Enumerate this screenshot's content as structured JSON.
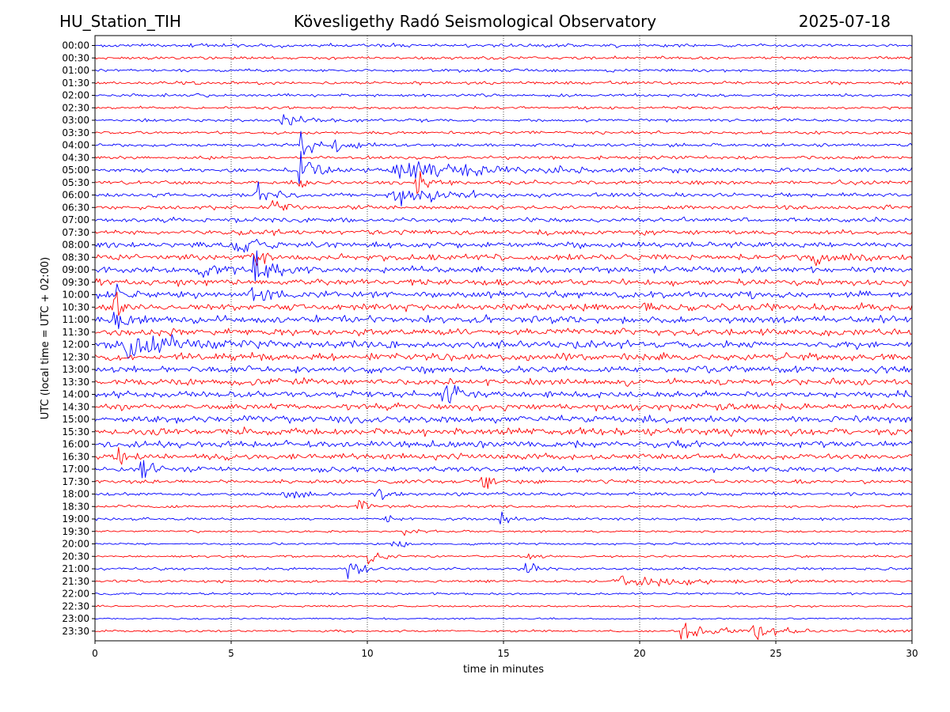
{
  "header": {
    "station": "HU_Station_TIH",
    "observatory": "Kövesligethy Radó Seismological Observatory",
    "date": "2025-07-18"
  },
  "chart_data": {
    "type": "line",
    "chart_kind": "helicorder",
    "xlabel": "time in minutes",
    "ylabel": "UTC (local time = UTC + 02:00)",
    "xlim": [
      0,
      30
    ],
    "x_ticks": [
      0,
      5,
      10,
      15,
      20,
      25,
      30
    ],
    "grid": "vertical dotted lines at x ticks",
    "colors": {
      "even_rows": "#0000ff",
      "odd_rows": "#ff0000"
    },
    "rows": [
      {
        "label": "00:00",
        "noise": 0.45,
        "events": []
      },
      {
        "label": "00:30",
        "noise": 0.4,
        "events": []
      },
      {
        "label": "01:00",
        "noise": 0.4,
        "events": []
      },
      {
        "label": "01:30",
        "noise": 0.42,
        "events": []
      },
      {
        "label": "02:00",
        "noise": 0.4,
        "events": []
      },
      {
        "label": "02:30",
        "noise": 0.35,
        "events": []
      },
      {
        "label": "03:00",
        "noise": 0.4,
        "events": [
          {
            "t": 6.9,
            "amp": 1.2,
            "dur": 0.4
          }
        ]
      },
      {
        "label": "03:30",
        "noise": 0.4,
        "events": []
      },
      {
        "label": "04:00",
        "noise": 0.45,
        "events": [
          {
            "t": 7.5,
            "amp": 3.2,
            "dur": 0.3
          },
          {
            "t": 8.8,
            "amp": 0.9,
            "dur": 0.6
          }
        ]
      },
      {
        "label": "04:30",
        "noise": 0.45,
        "events": []
      },
      {
        "label": "05:00",
        "noise": 0.55,
        "events": [
          {
            "t": 7.5,
            "amp": 3.5,
            "dur": 0.4
          },
          {
            "t": 11.0,
            "amp": 1.3,
            "dur": 3.0
          }
        ]
      },
      {
        "label": "05:30",
        "noise": 0.55,
        "events": [
          {
            "t": 7.5,
            "amp": 1.8,
            "dur": 0.3
          },
          {
            "t": 11.8,
            "amp": 2.0,
            "dur": 0.3
          }
        ]
      },
      {
        "label": "06:00",
        "noise": 0.55,
        "events": [
          {
            "t": 5.9,
            "amp": 1.6,
            "dur": 0.4
          },
          {
            "t": 11.0,
            "amp": 1.3,
            "dur": 1.5
          }
        ]
      },
      {
        "label": "06:30",
        "noise": 0.55,
        "events": [
          {
            "t": 6.5,
            "amp": 1.5,
            "dur": 0.3
          }
        ]
      },
      {
        "label": "07:00",
        "noise": 0.6,
        "events": []
      },
      {
        "label": "07:30",
        "noise": 0.65,
        "events": []
      },
      {
        "label": "08:00",
        "noise": 0.75,
        "events": [
          {
            "t": 5.2,
            "amp": 1.3,
            "dur": 0.6
          }
        ]
      },
      {
        "label": "08:30",
        "noise": 0.8,
        "events": [
          {
            "t": 26.4,
            "amp": 2.8,
            "dur": 0.5
          },
          {
            "t": 5.8,
            "amp": 1.4,
            "dur": 0.3
          }
        ]
      },
      {
        "label": "09:00",
        "noise": 0.85,
        "events": [
          {
            "t": 5.8,
            "amp": 3.0,
            "dur": 0.5
          },
          {
            "t": 3.8,
            "amp": 1.6,
            "dur": 0.5
          }
        ]
      },
      {
        "label": "09:30",
        "noise": 0.85,
        "events": []
      },
      {
        "label": "10:00",
        "noise": 0.9,
        "events": [
          {
            "t": 5.8,
            "amp": 2.0,
            "dur": 0.4
          },
          {
            "t": 0.7,
            "amp": 1.6,
            "dur": 0.3
          }
        ]
      },
      {
        "label": "10:30",
        "noise": 0.95,
        "events": [
          {
            "t": 0.7,
            "amp": 2.2,
            "dur": 0.3
          }
        ]
      },
      {
        "label": "11:00",
        "noise": 0.95,
        "events": [
          {
            "t": 0.7,
            "amp": 2.0,
            "dur": 0.4
          }
        ]
      },
      {
        "label": "11:30",
        "noise": 0.95,
        "events": []
      },
      {
        "label": "12:00",
        "noise": 1.0,
        "events": [
          {
            "t": 1.2,
            "amp": 1.3,
            "dur": 2.0
          }
        ]
      },
      {
        "label": "12:30",
        "noise": 0.95,
        "events": []
      },
      {
        "label": "13:00",
        "noise": 0.9,
        "events": []
      },
      {
        "label": "13:30",
        "noise": 0.9,
        "events": []
      },
      {
        "label": "14:00",
        "noise": 0.85,
        "events": [
          {
            "t": 12.8,
            "amp": 2.2,
            "dur": 0.6
          }
        ]
      },
      {
        "label": "14:30",
        "noise": 0.85,
        "events": []
      },
      {
        "label": "15:00",
        "noise": 1.0,
        "events": []
      },
      {
        "label": "15:30",
        "noise": 0.95,
        "events": []
      },
      {
        "label": "16:00",
        "noise": 0.95,
        "events": []
      },
      {
        "label": "16:30",
        "noise": 0.8,
        "events": [
          {
            "t": 0.7,
            "amp": 1.3,
            "dur": 0.4
          }
        ]
      },
      {
        "label": "17:00",
        "noise": 0.7,
        "events": [
          {
            "t": 1.7,
            "amp": 1.7,
            "dur": 0.4
          }
        ]
      },
      {
        "label": "17:30",
        "noise": 0.5,
        "events": [
          {
            "t": 14.2,
            "amp": 2.0,
            "dur": 0.4
          }
        ]
      },
      {
        "label": "18:00",
        "noise": 0.45,
        "events": [
          {
            "t": 10.3,
            "amp": 1.6,
            "dur": 0.3
          },
          {
            "t": 7.0,
            "amp": 0.9,
            "dur": 0.5
          }
        ]
      },
      {
        "label": "18:30",
        "noise": 0.35,
        "events": [
          {
            "t": 9.6,
            "amp": 1.5,
            "dur": 0.3
          }
        ]
      },
      {
        "label": "19:00",
        "noise": 0.35,
        "events": [
          {
            "t": 14.8,
            "amp": 1.5,
            "dur": 0.3
          },
          {
            "t": 10.7,
            "amp": 0.9,
            "dur": 0.3
          }
        ]
      },
      {
        "label": "19:30",
        "noise": 0.3,
        "events": [
          {
            "t": 11.3,
            "amp": 0.8,
            "dur": 0.3
          }
        ]
      },
      {
        "label": "20:00",
        "noise": 0.3,
        "events": [
          {
            "t": 10.9,
            "amp": 0.9,
            "dur": 0.3
          }
        ]
      },
      {
        "label": "20:30",
        "noise": 0.3,
        "events": [
          {
            "t": 10.0,
            "amp": 1.8,
            "dur": 0.3
          },
          {
            "t": 15.8,
            "amp": 1.0,
            "dur": 0.3
          }
        ]
      },
      {
        "label": "21:00",
        "noise": 0.35,
        "events": [
          {
            "t": 9.3,
            "amp": 1.2,
            "dur": 0.4
          },
          {
            "t": 15.8,
            "amp": 1.5,
            "dur": 0.3
          }
        ]
      },
      {
        "label": "21:30",
        "noise": 0.35,
        "events": [
          {
            "t": 19.3,
            "amp": 0.9,
            "dur": 2.0
          }
        ]
      },
      {
        "label": "22:00",
        "noise": 0.32,
        "events": []
      },
      {
        "label": "22:30",
        "noise": 0.25,
        "events": []
      },
      {
        "label": "23:00",
        "noise": 0.22,
        "events": []
      },
      {
        "label": "23:30",
        "noise": 0.3,
        "events": [
          {
            "t": 21.5,
            "amp": 0.9,
            "dur": 1.5
          },
          {
            "t": 24.2,
            "amp": 0.7,
            "dur": 1.0
          }
        ]
      }
    ]
  }
}
